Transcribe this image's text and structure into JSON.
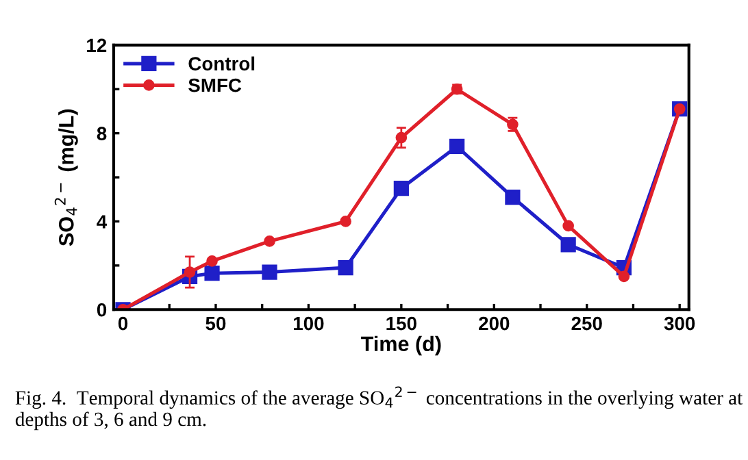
{
  "chart_data": {
    "type": "line",
    "xlabel": "Time (d)",
    "ylabel": "SO$_{4}$$^{2−}$ (mg/L)",
    "x": [
      0,
      36,
      48,
      79,
      120,
      150,
      180,
      210,
      240,
      270,
      300
    ],
    "series": [
      {
        "name": "Control",
        "color": "#1f1fc8",
        "marker": "square",
        "values": [
          0,
          1.5,
          1.65,
          1.7,
          1.9,
          5.5,
          7.4,
          5.1,
          2.95,
          1.9,
          9.1
        ]
      },
      {
        "name": "SMFC",
        "color": "#e0202a",
        "marker": "circle",
        "values": [
          0,
          1.7,
          2.2,
          3.1,
          4.0,
          7.8,
          10.0,
          8.4,
          3.8,
          1.5,
          9.1
        ],
        "errors": [
          null,
          0.7,
          null,
          null,
          null,
          0.45,
          0.2,
          0.3,
          null,
          null,
          null
        ]
      }
    ],
    "xlim": [
      -5,
      305
    ],
    "ylim": [
      0,
      12
    ],
    "xticks": [
      0,
      {
        "value": 25,
        "label": null
      },
      50,
      {
        "value": 75,
        "label": null
      },
      100,
      {
        "value": 125,
        "label": null
      },
      150,
      {
        "value": 175,
        "label": null
      },
      200,
      {
        "value": 225,
        "label": null
      },
      250,
      {
        "value": 275,
        "label": null
      },
      300
    ],
    "yticks": [
      0,
      {
        "value": 2,
        "label": null
      },
      4,
      {
        "value": 6,
        "label": null
      },
      8,
      {
        "value": 10,
        "label": null
      },
      12
    ],
    "legend": "top left",
    "grid": false,
    "annotations": [
      "Fig. 4.  Temporal dynamics of the average SO$_{4}$$^{2−}$ concentrations in the overlying water at depths of 3, 6 and 9 cm."
    ]
  }
}
